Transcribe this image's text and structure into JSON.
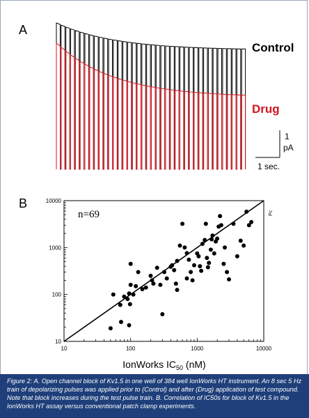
{
  "panel_a": {
    "label": "A",
    "control_label": "Control",
    "drug_label": "Drug",
    "scale_y_value": "1",
    "scale_y_unit": "pA",
    "scale_x": "1 sec.",
    "colors": {
      "control": "#000000",
      "drug": "#d0141e"
    }
  },
  "panel_b": {
    "label": "B",
    "annotation": "n=69",
    "xlabel_prefix": "IonWorks IC",
    "xlabel_sub": "50",
    "xlabel_suffix": " (nM)",
    "ylabel": "Pc"
  },
  "caption": "Figure 2: A. Open channel block of Kv1.5 in one well of 384 well IonWorks HT instrument. An 8 sec 5 Hz train of depolarizing pulses was applied prior to (Control) and after (Drug) application of test compound. Note that block increases during the test pulse train. B. Correlation of IC50s for block of Kv1.5 in the IonWorks HT assay versus conventional patch clamp experiments.",
  "chart_data": [
    {
      "type": "line",
      "panel": "A",
      "pulse_count": 40,
      "series": [
        {
          "name": "Control",
          "peak_start": 1.0,
          "peak_end": 0.82
        },
        {
          "name": "Drug",
          "peak_start": 0.86,
          "peak_end": 0.5
        }
      ]
    },
    {
      "type": "scatter",
      "panel": "B",
      "xscale": "log",
      "yscale": "log",
      "xlim": [
        10,
        10000
      ],
      "ylim": [
        10,
        10000
      ],
      "x_ticks": [
        "10",
        "100",
        "1000",
        "10000"
      ],
      "y_ticks": [
        "10",
        "100",
        "1000",
        "10000"
      ],
      "identity_line": true,
      "points": [
        [
          50,
          19
        ],
        [
          55,
          100
        ],
        [
          70,
          60
        ],
        [
          72,
          26
        ],
        [
          80,
          90
        ],
        [
          90,
          80
        ],
        [
          95,
          22
        ],
        [
          95,
          105
        ],
        [
          98,
          62
        ],
        [
          100,
          160
        ],
        [
          100,
          450
        ],
        [
          110,
          100
        ],
        [
          120,
          150
        ],
        [
          130,
          300
        ],
        [
          150,
          130
        ],
        [
          170,
          140
        ],
        [
          200,
          250
        ],
        [
          210,
          200
        ],
        [
          220,
          170
        ],
        [
          250,
          370
        ],
        [
          280,
          160
        ],
        [
          300,
          38
        ],
        [
          320,
          300
        ],
        [
          350,
          220
        ],
        [
          400,
          390
        ],
        [
          420,
          420
        ],
        [
          450,
          330
        ],
        [
          480,
          170
        ],
        [
          500,
          520
        ],
        [
          500,
          125
        ],
        [
          550,
          1100
        ],
        [
          600,
          3200
        ],
        [
          650,
          1000
        ],
        [
          700,
          220
        ],
        [
          700,
          760
        ],
        [
          750,
          550
        ],
        [
          800,
          300
        ],
        [
          850,
          200
        ],
        [
          900,
          420
        ],
        [
          1000,
          750
        ],
        [
          1050,
          650
        ],
        [
          1100,
          400
        ],
        [
          1150,
          320
        ],
        [
          1200,
          1200
        ],
        [
          1300,
          1450
        ],
        [
          1350,
          3200
        ],
        [
          1400,
          600
        ],
        [
          1450,
          380
        ],
        [
          1500,
          470
        ],
        [
          1600,
          900
        ],
        [
          1650,
          1500
        ],
        [
          1700,
          1800
        ],
        [
          1800,
          750
        ],
        [
          1900,
          1350
        ],
        [
          2000,
          1550
        ],
        [
          2100,
          2800
        ],
        [
          2200,
          4700
        ],
        [
          2300,
          3000
        ],
        [
          2500,
          450
        ],
        [
          2600,
          1000
        ],
        [
          2800,
          300
        ],
        [
          3000,
          210
        ],
        [
          3500,
          3200
        ],
        [
          4000,
          650
        ],
        [
          4500,
          1400
        ],
        [
          5000,
          1100
        ],
        [
          5500,
          5800
        ],
        [
          6000,
          3000
        ],
        [
          6500,
          3500
        ]
      ]
    }
  ]
}
